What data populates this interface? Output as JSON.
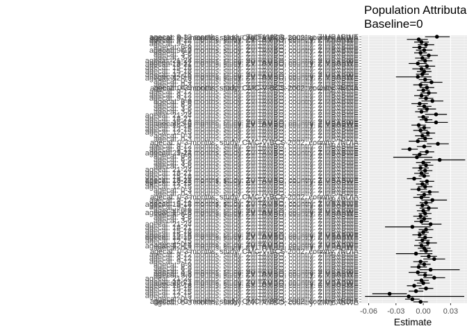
{
  "chart_data": {
    "type": "scatter",
    "title_lines": [
      "Population Attributable",
      "Baseline=0"
    ],
    "xlabel": "Estimate",
    "ylabel": "",
    "xlim": [
      -0.068,
      0.048
    ],
    "x_ticks": [
      -0.06,
      -0.03,
      0.0,
      0.03
    ],
    "x_tick_labels": [
      "-0.06",
      "-0.03",
      "0.00",
      "0.03"
    ],
    "grid": true,
    "panel_background": "#ebebeb",
    "point_color": "#000000",
    "visible_y_labels": [
      "agecat: 9-12 months, study: ZVITAMBO, country: ZIMBABWE",
      "agecat: 9-12 months, study: ZVITAMBO, country: ZIMBABWE",
      "agecat: 9-12 months, study: ZVITAMBO, country: ZIMBABWE",
      "agecat: 6-9 months, study: ZVITAMBO, country: ZIMBABWE",
      "agecat: 6-9 months, study: ZVITAMBO, country: ZIMBABWE",
      "agecat: 3-6 months, study: ZVITAMBO, country: ZIMBABWE",
      "agecat: 3-6 months, study: ZVITAMBO, country: ZIMBABWE",
      "agecat: 21-24 months, study: ZVITAMBO, country: ZIMBABWE",
      "agecat: 18-21 months, study: ZVITAMBO, country: ZIMBABWE",
      "agecat: 15-18 months, study: ZVITAMBO, country: ZIMBABWE",
      "agecat: 15-18 months, study: ZVITAMBO, country: ZIMBABWE",
      "agecat: 12-15 months, study: ZVITAMBO, country: ZIMBABWE",
      "agecat: 12-15 months, study: ZVITAMBO, country: ZIMBABWE",
      "agecat: 0-3 months, study: ZVITAMBO, country: ZIMBABWE",
      "agecat: 0-3 months, study: ZVITAMBO, country: ZIMBABWE",
      "agecat: 0-3 months, study: CMC-V-BCS-2002, country: INDIA"
    ],
    "points": [
      {
        "est": 0.015,
        "lo": 0.002,
        "hi": 0.029
      },
      {
        "est": -0.005,
        "lo": -0.018,
        "hi": 0.005
      },
      {
        "est": -0.002,
        "lo": -0.01,
        "hi": 0.006
      },
      {
        "est": 0.003,
        "lo": -0.006,
        "hi": 0.012
      },
      {
        "est": -0.004,
        "lo": -0.012,
        "hi": 0.004
      },
      {
        "est": 0.001,
        "lo": -0.008,
        "hi": 0.01
      },
      {
        "est": -0.003,
        "lo": -0.01,
        "hi": 0.004
      },
      {
        "est": 0.006,
        "lo": -0.004,
        "hi": 0.016
      },
      {
        "est": -0.001,
        "lo": -0.009,
        "hi": 0.007
      },
      {
        "est": 0.002,
        "lo": -0.006,
        "hi": 0.01
      },
      {
        "est": -0.006,
        "lo": -0.016,
        "hi": 0.004
      },
      {
        "est": 0.004,
        "lo": -0.005,
        "hi": 0.013
      },
      {
        "est": -0.002,
        "lo": -0.012,
        "hi": 0.008
      },
      {
        "est": 0.001,
        "lo": -0.007,
        "hi": 0.009
      },
      {
        "est": -0.001,
        "lo": -0.008,
        "hi": 0.006
      },
      {
        "est": -0.006,
        "lo": -0.03,
        "hi": 0.009
      },
      {
        "est": 0.002,
        "lo": -0.005,
        "hi": 0.009
      },
      {
        "est": 0.009,
        "lo": -0.003,
        "hi": 0.021
      },
      {
        "est": -0.003,
        "lo": -0.011,
        "hi": 0.005
      },
      {
        "est": 0.004,
        "lo": -0.004,
        "hi": 0.012
      },
      {
        "est": 0.0,
        "lo": -0.007,
        "hi": 0.007
      },
      {
        "est": 0.006,
        "lo": -0.003,
        "hi": 0.015
      },
      {
        "est": -0.002,
        "lo": -0.01,
        "hi": 0.006
      },
      {
        "est": 0.003,
        "lo": -0.005,
        "hi": 0.011
      },
      {
        "est": 0.01,
        "lo": -0.002,
        "hi": 0.022
      },
      {
        "est": -0.004,
        "lo": -0.013,
        "hi": 0.005
      },
      {
        "est": 0.001,
        "lo": -0.007,
        "hi": 0.009
      },
      {
        "est": 0.004,
        "lo": -0.006,
        "hi": 0.014
      },
      {
        "est": -0.002,
        "lo": -0.009,
        "hi": 0.005
      },
      {
        "est": 0.014,
        "lo": 0.002,
        "hi": 0.026
      },
      {
        "est": 0.0,
        "lo": -0.006,
        "hi": 0.006
      },
      {
        "est": 0.003,
        "lo": -0.004,
        "hi": 0.01
      },
      {
        "est": 0.014,
        "lo": 0.002,
        "hi": 0.027
      },
      {
        "est": -0.005,
        "lo": -0.013,
        "hi": 0.003
      },
      {
        "est": 0.001,
        "lo": -0.006,
        "hi": 0.008
      },
      {
        "est": -0.003,
        "lo": -0.011,
        "hi": 0.005
      },
      {
        "est": 0.005,
        "lo": -0.003,
        "hi": 0.013
      },
      {
        "est": -0.001,
        "lo": -0.009,
        "hi": 0.007
      },
      {
        "est": 0.002,
        "lo": -0.006,
        "hi": 0.01
      },
      {
        "est": -0.006,
        "lo": -0.016,
        "hi": 0.004
      },
      {
        "est": 0.016,
        "lo": 0.004,
        "hi": 0.028
      },
      {
        "est": 0.001,
        "lo": -0.007,
        "hi": 0.009
      },
      {
        "est": -0.015,
        "lo": -0.024,
        "hi": -0.006
      },
      {
        "est": 0.004,
        "lo": -0.004,
        "hi": 0.012
      },
      {
        "est": -0.004,
        "lo": -0.012,
        "hi": 0.004
      },
      {
        "est": -0.007,
        "lo": -0.033,
        "hi": 0.01
      },
      {
        "est": 0.018,
        "lo": 0.001,
        "hi": 0.046
      },
      {
        "est": 0.0,
        "lo": -0.008,
        "hi": 0.008
      },
      {
        "est": 0.003,
        "lo": -0.005,
        "hi": 0.011
      },
      {
        "est": -0.003,
        "lo": -0.012,
        "hi": 0.006
      },
      {
        "est": 0.002,
        "lo": -0.006,
        "hi": 0.01
      },
      {
        "est": -0.002,
        "lo": -0.01,
        "hi": 0.006
      },
      {
        "est": 0.001,
        "lo": -0.005,
        "hi": 0.007
      },
      {
        "est": -0.01,
        "lo": -0.018,
        "hi": -0.002
      },
      {
        "est": 0.004,
        "lo": -0.004,
        "hi": 0.012
      },
      {
        "est": -0.001,
        "lo": -0.008,
        "hi": 0.006
      },
      {
        "est": 0.002,
        "lo": -0.006,
        "hi": 0.01
      },
      {
        "est": -0.005,
        "lo": -0.014,
        "hi": 0.004
      },
      {
        "est": 0.007,
        "lo": -0.003,
        "hi": 0.017
      },
      {
        "est": 0.001,
        "lo": -0.007,
        "hi": 0.009
      },
      {
        "est": -0.002,
        "lo": -0.011,
        "hi": 0.007
      },
      {
        "est": 0.01,
        "lo": -0.002,
        "hi": 0.026
      },
      {
        "est": 0.003,
        "lo": -0.004,
        "hi": 0.01
      },
      {
        "est": -0.001,
        "lo": -0.008,
        "hi": 0.006
      },
      {
        "est": 0.006,
        "lo": -0.004,
        "hi": 0.016
      },
      {
        "est": 0.0,
        "lo": -0.007,
        "hi": 0.007
      },
      {
        "est": 0.002,
        "lo": -0.005,
        "hi": 0.009
      },
      {
        "est": -0.003,
        "lo": -0.011,
        "hi": 0.005
      },
      {
        "est": 0.001,
        "lo": -0.007,
        "hi": 0.009
      },
      {
        "est": -0.002,
        "lo": -0.01,
        "hi": 0.006
      },
      {
        "est": 0.008,
        "lo": -0.002,
        "hi": 0.02
      },
      {
        "est": -0.012,
        "lo": -0.042,
        "hi": 0.008
      },
      {
        "est": 0.003,
        "lo": -0.005,
        "hi": 0.011
      },
      {
        "est": 0.0,
        "lo": -0.006,
        "hi": 0.006
      },
      {
        "est": -0.004,
        "lo": -0.012,
        "hi": 0.004
      },
      {
        "est": 0.002,
        "lo": -0.006,
        "hi": 0.01
      },
      {
        "est": -0.001,
        "lo": -0.009,
        "hi": 0.007
      },
      {
        "est": 0.005,
        "lo": -0.005,
        "hi": 0.015
      },
      {
        "est": -0.002,
        "lo": -0.01,
        "hi": 0.006
      },
      {
        "est": 0.001,
        "lo": -0.006,
        "hi": 0.008
      },
      {
        "est": 0.003,
        "lo": -0.004,
        "hi": 0.01
      },
      {
        "est": -0.008,
        "lo": -0.03,
        "hi": 0.01
      },
      {
        "est": 0.006,
        "lo": -0.003,
        "hi": 0.015
      },
      {
        "est": 0.012,
        "lo": 0.0,
        "hi": 0.024
      },
      {
        "est": -0.003,
        "lo": -0.011,
        "hi": 0.005
      },
      {
        "est": 0.001,
        "lo": -0.006,
        "hi": 0.008
      },
      {
        "est": -0.005,
        "lo": -0.014,
        "hi": 0.004
      },
      {
        "est": 0.008,
        "lo": -0.004,
        "hi": 0.04
      },
      {
        "est": -0.006,
        "lo": -0.016,
        "hi": 0.004
      },
      {
        "est": 0.002,
        "lo": -0.006,
        "hi": 0.01
      },
      {
        "est": 0.012,
        "lo": 0.0,
        "hi": 0.024
      },
      {
        "est": -0.002,
        "lo": -0.01,
        "hi": 0.006
      },
      {
        "est": 0.0,
        "lo": -0.007,
        "hi": 0.007
      },
      {
        "est": -0.01,
        "lo": -0.018,
        "hi": -0.002
      },
      {
        "est": 0.003,
        "lo": -0.005,
        "hi": 0.011
      },
      {
        "est": -0.008,
        "lo": -0.016,
        "hi": 0.0
      },
      {
        "est": -0.037,
        "lo": -0.056,
        "hi": -0.018
      },
      {
        "est": -0.016,
        "lo": -0.064,
        "hi": 0.045
      },
      {
        "est": -0.012,
        "lo": -0.02,
        "hi": -0.004
      },
      {
        "est": -0.003,
        "lo": -0.011,
        "hi": 0.005
      }
    ]
  }
}
